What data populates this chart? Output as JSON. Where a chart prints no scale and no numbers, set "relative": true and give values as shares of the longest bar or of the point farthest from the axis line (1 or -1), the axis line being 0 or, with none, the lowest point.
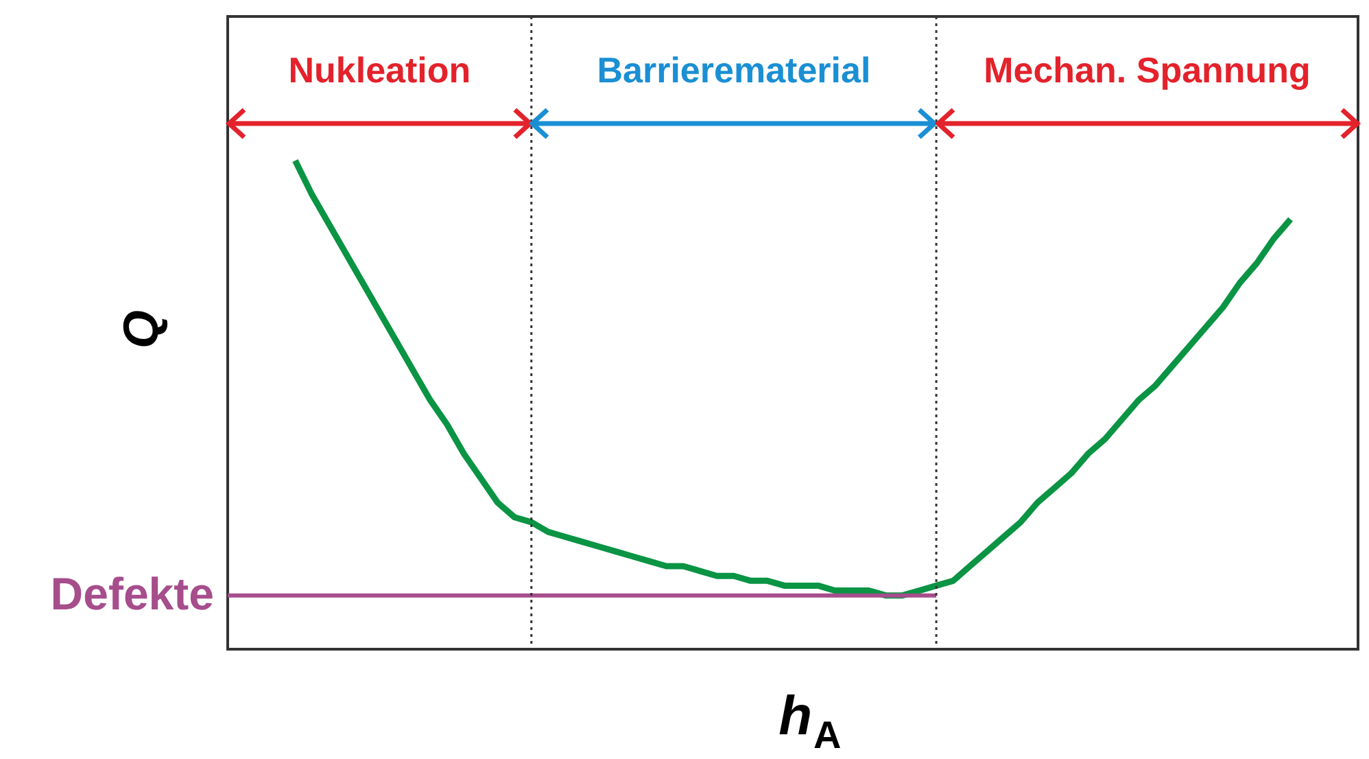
{
  "chart_data": {
    "type": "line",
    "relative": true,
    "xlabel": "h$_{A}$",
    "ylabel": "Q",
    "annotations": [
      "Nukleation",
      "Barrierematerial",
      "Mechan. Spannung"
    ],
    "categories": [
      null,
      null,
      null,
      null,
      null,
      null,
      null,
      null,
      null,
      null,
      null,
      null,
      null,
      null,
      null,
      null,
      null,
      null,
      null,
      null,
      null,
      null,
      null,
      null,
      null,
      null,
      null,
      null,
      null,
      null,
      null,
      null,
      null,
      null,
      null,
      null,
      null,
      null,
      null,
      null,
      null,
      null,
      null,
      null,
      null,
      null,
      null,
      null,
      null,
      null,
      null,
      null,
      null,
      null,
      null,
      null,
      null,
      null,
      null,
      null,
      null,
      null,
      null,
      null,
      null,
      null,
      null,
      null
    ],
    "series": [
      {
        "color": "#0a9444",
        "values": [
          null,
          null,
          null,
          null,
          1.0,
          0.93,
          0.87,
          0.81,
          0.75,
          0.69,
          0.63,
          0.57,
          0.51,
          0.46,
          0.4,
          0.35,
          0.3,
          0.27,
          0.26,
          0.24,
          0.23,
          0.22,
          0.21,
          0.2,
          0.19,
          0.18,
          0.17,
          0.17,
          0.16,
          0.15,
          0.15,
          0.14,
          0.14,
          0.13,
          0.13,
          0.13,
          0.12,
          0.12,
          0.12,
          0.11,
          0.11,
          0.12,
          0.13,
          0.14,
          0.17,
          0.2,
          0.23,
          0.26,
          0.3,
          0.33,
          0.36,
          0.4,
          0.43,
          0.47,
          0.51,
          0.54,
          0.58,
          0.62,
          0.66,
          0.7,
          0.75,
          0.79,
          0.84,
          0.88,
          null,
          null,
          null,
          null
        ]
      },
      {
        "name": "Defekte",
        "color": "#a64d8c",
        "values": [
          0.11,
          0.11,
          0.11,
          0.11,
          0.11,
          0.11,
          0.11,
          0.11,
          0.11,
          0.11,
          0.11,
          0.11,
          0.11,
          0.11,
          0.11,
          0.11,
          0.11,
          0.11,
          0.11,
          0.11,
          0.11,
          0.11,
          0.11,
          0.11,
          0.11,
          0.11,
          0.11,
          0.11,
          0.11,
          0.11,
          0.11,
          0.11,
          0.11,
          0.11,
          0.11,
          0.11,
          0.11,
          0.11,
          0.11,
          0.11,
          0.11,
          0.11,
          0.11,
          null,
          null,
          null,
          null,
          null,
          null,
          null,
          null,
          null,
          null,
          null,
          null,
          null,
          null,
          null,
          null,
          null,
          null,
          null,
          null,
          null,
          null,
          null,
          null,
          null
        ]
      }
    ]
  }
}
